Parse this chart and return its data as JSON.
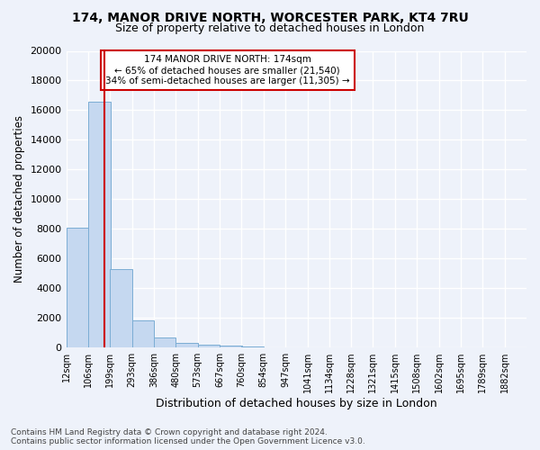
{
  "title_line1": "174, MANOR DRIVE NORTH, WORCESTER PARK, KT4 7RU",
  "title_line2": "Size of property relative to detached houses in London",
  "xlabel": "Distribution of detached houses by size in London",
  "ylabel": "Number of detached properties",
  "annotation_line1": "174 MANOR DRIVE NORTH: 174sqm",
  "annotation_line2": "← 65% of detached houses are smaller (21,540)",
  "annotation_line3": "34% of semi-detached houses are larger (11,305) →",
  "footer_line1": "Contains HM Land Registry data © Crown copyright and database right 2024.",
  "footer_line2": "Contains public sector information licensed under the Open Government Licence v3.0.",
  "bar_color": "#c5d8f0",
  "bar_edge_color": "#7badd4",
  "vline_color": "#cc0000",
  "annotation_box_color": "#cc0000",
  "background_color": "#eef2fa",
  "grid_color": "#ffffff",
  "bin_labels": [
    "12sqm",
    "106sqm",
    "199sqm",
    "293sqm",
    "386sqm",
    "480sqm",
    "573sqm",
    "667sqm",
    "760sqm",
    "854sqm",
    "947sqm",
    "1041sqm",
    "1134sqm",
    "1228sqm",
    "1321sqm",
    "1415sqm",
    "1508sqm",
    "1602sqm",
    "1695sqm",
    "1789sqm",
    "1882sqm"
  ],
  "bin_edges": [
    12,
    106,
    199,
    293,
    386,
    480,
    573,
    667,
    760,
    854,
    947,
    1041,
    1134,
    1228,
    1321,
    1415,
    1508,
    1602,
    1695,
    1789,
    1882
  ],
  "bar_heights": [
    8100,
    16600,
    5300,
    1800,
    700,
    280,
    180,
    100,
    60,
    0,
    0,
    0,
    0,
    0,
    0,
    0,
    0,
    0,
    0,
    0
  ],
  "ylim": [
    0,
    20000
  ],
  "yticks": [
    0,
    2000,
    4000,
    6000,
    8000,
    10000,
    12000,
    14000,
    16000,
    18000,
    20000
  ],
  "vline_x": 174
}
